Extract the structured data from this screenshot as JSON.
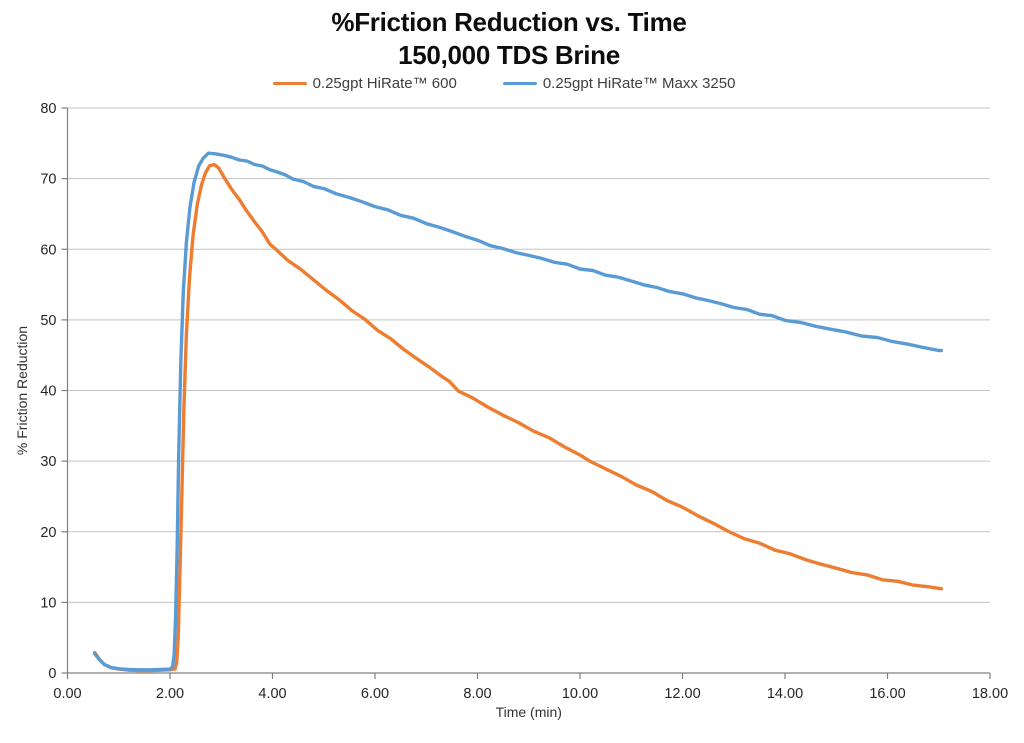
{
  "colors": {
    "orange_series": "#ED7D31",
    "blue_series": "#5B9BD5",
    "grid": "#C3C3C3",
    "axis": "#808080",
    "tick_text": "#262626",
    "title_text": "#0d0d0d"
  },
  "chart_data": {
    "type": "line",
    "title": "%Friction Reduction vs. Time",
    "subtitle": "150,000 TDS Brine",
    "xlabel": "Time (min)",
    "ylabel": "% Friction Reduction",
    "xlim": [
      0,
      18
    ],
    "ylim": [
      0,
      80
    ],
    "x_ticks": [
      "0.00",
      "2.00",
      "4.00",
      "6.00",
      "8.00",
      "10.00",
      "12.00",
      "14.00",
      "16.00",
      "18.00"
    ],
    "x_tick_values": [
      0,
      2,
      4,
      6,
      8,
      10,
      12,
      14,
      16,
      18
    ],
    "y_ticks": [
      0,
      10,
      20,
      30,
      40,
      50,
      60,
      70,
      80
    ],
    "grid": "horizontal",
    "legend_position": "top",
    "series": [
      {
        "name": "0.25gpt HiRate™ 600",
        "color": "#ED7D31",
        "points": [
          [
            0.53,
            2.9
          ],
          [
            0.62,
            1.95
          ],
          [
            0.72,
            1.2
          ],
          [
            0.85,
            0.75
          ],
          [
            1.0,
            0.55
          ],
          [
            1.2,
            0.4
          ],
          [
            1.4,
            0.35
          ],
          [
            1.6,
            0.35
          ],
          [
            1.8,
            0.4
          ],
          [
            2.0,
            0.45
          ],
          [
            2.1,
            0.6
          ],
          [
            2.13,
            1.5
          ],
          [
            2.16,
            5
          ],
          [
            2.19,
            13
          ],
          [
            2.23,
            25
          ],
          [
            2.27,
            37
          ],
          [
            2.32,
            48
          ],
          [
            2.38,
            56
          ],
          [
            2.45,
            62
          ],
          [
            2.53,
            66.3
          ],
          [
            2.61,
            69.0
          ],
          [
            2.69,
            70.8
          ],
          [
            2.77,
            71.8
          ],
          [
            2.86,
            72.0
          ],
          [
            2.95,
            71.5
          ],
          [
            3.07,
            70.0
          ],
          [
            3.2,
            68.6
          ],
          [
            3.35,
            67.0
          ],
          [
            3.5,
            65.4
          ],
          [
            3.65,
            63.9
          ],
          [
            3.8,
            62.4
          ],
          [
            3.95,
            60.8
          ],
          [
            4.05,
            60.0
          ],
          [
            4.3,
            58.5
          ],
          [
            4.55,
            57.1
          ],
          [
            4.8,
            55.7
          ],
          [
            5.05,
            54.2
          ],
          [
            5.3,
            52.8
          ],
          [
            5.55,
            51.4
          ],
          [
            5.8,
            50.0
          ],
          [
            6.05,
            48.6
          ],
          [
            6.3,
            47.3
          ],
          [
            6.55,
            45.9
          ],
          [
            6.8,
            44.6
          ],
          [
            7.05,
            43.3
          ],
          [
            7.3,
            42.1
          ],
          [
            7.45,
            41.2
          ],
          [
            7.63,
            40.0
          ],
          [
            7.9,
            38.9
          ],
          [
            8.2,
            37.7
          ],
          [
            8.5,
            36.5
          ],
          [
            8.8,
            35.4
          ],
          [
            9.1,
            34.3
          ],
          [
            9.4,
            33.2
          ],
          [
            9.7,
            32.1
          ],
          [
            10.0,
            30.8
          ],
          [
            10.2,
            30.0
          ],
          [
            10.5,
            28.9
          ],
          [
            10.8,
            27.8
          ],
          [
            11.1,
            26.7
          ],
          [
            11.4,
            25.6
          ],
          [
            11.7,
            24.5
          ],
          [
            12.0,
            23.4
          ],
          [
            12.3,
            22.3
          ],
          [
            12.6,
            21.2
          ],
          [
            12.9,
            20.0
          ],
          [
            13.2,
            19.1
          ],
          [
            13.5,
            18.3
          ],
          [
            13.8,
            17.5
          ],
          [
            14.1,
            16.8
          ],
          [
            14.4,
            16.1
          ],
          [
            14.7,
            15.4
          ],
          [
            15.0,
            14.8
          ],
          [
            15.3,
            14.3
          ],
          [
            15.6,
            13.8
          ],
          [
            15.9,
            13.3
          ],
          [
            16.2,
            12.9
          ],
          [
            16.5,
            12.5
          ],
          [
            16.8,
            12.2
          ],
          [
            17.05,
            11.9
          ]
        ]
      },
      {
        "name": "0.25gpt HiRate™ Maxx 3250",
        "color": "#5B9BD5",
        "points": [
          [
            0.53,
            2.75
          ],
          [
            0.62,
            1.9
          ],
          [
            0.72,
            1.2
          ],
          [
            0.85,
            0.8
          ],
          [
            1.0,
            0.6
          ],
          [
            1.2,
            0.5
          ],
          [
            1.4,
            0.45
          ],
          [
            1.6,
            0.45
          ],
          [
            1.8,
            0.5
          ],
          [
            2.0,
            0.55
          ],
          [
            2.05,
            0.9
          ],
          [
            2.08,
            2.5
          ],
          [
            2.11,
            8
          ],
          [
            2.14,
            18
          ],
          [
            2.17,
            31
          ],
          [
            2.21,
            44
          ],
          [
            2.26,
            54
          ],
          [
            2.32,
            61
          ],
          [
            2.39,
            66
          ],
          [
            2.47,
            69.5
          ],
          [
            2.56,
            71.8
          ],
          [
            2.65,
            72.9
          ],
          [
            2.75,
            73.6
          ],
          [
            2.9,
            73.5
          ],
          [
            3.05,
            73.3
          ],
          [
            3.2,
            73.0
          ],
          [
            3.35,
            72.7
          ],
          [
            3.5,
            72.4
          ],
          [
            3.65,
            72.1
          ],
          [
            3.8,
            71.7
          ],
          [
            3.95,
            71.3
          ],
          [
            4.1,
            70.9
          ],
          [
            4.25,
            70.5
          ],
          [
            4.4,
            70.0
          ],
          [
            4.6,
            69.5
          ],
          [
            4.8,
            69.0
          ],
          [
            5.0,
            68.5
          ],
          [
            5.25,
            67.9
          ],
          [
            5.5,
            67.3
          ],
          [
            5.75,
            66.7
          ],
          [
            6.0,
            66.1
          ],
          [
            6.25,
            65.5
          ],
          [
            6.5,
            64.9
          ],
          [
            6.75,
            64.3
          ],
          [
            7.0,
            63.7
          ],
          [
            7.25,
            63.1
          ],
          [
            7.5,
            62.5
          ],
          [
            7.75,
            61.9
          ],
          [
            8.0,
            61.2
          ],
          [
            8.25,
            60.6
          ],
          [
            8.5,
            60.0
          ],
          [
            8.75,
            59.6
          ],
          [
            9.0,
            59.1
          ],
          [
            9.25,
            58.7
          ],
          [
            9.5,
            58.2
          ],
          [
            9.75,
            57.8
          ],
          [
            10.0,
            57.3
          ],
          [
            10.25,
            56.9
          ],
          [
            10.5,
            56.4
          ],
          [
            10.75,
            56.0
          ],
          [
            11.0,
            55.5
          ],
          [
            11.25,
            55.0
          ],
          [
            11.5,
            54.5
          ],
          [
            11.75,
            54.1
          ],
          [
            12.0,
            53.6
          ],
          [
            12.25,
            53.2
          ],
          [
            12.5,
            52.7
          ],
          [
            12.75,
            52.3
          ],
          [
            13.0,
            51.8
          ],
          [
            13.25,
            51.4
          ],
          [
            13.5,
            50.9
          ],
          [
            13.75,
            50.5
          ],
          [
            14.0,
            50.0
          ],
          [
            14.3,
            49.6
          ],
          [
            14.6,
            49.1
          ],
          [
            14.9,
            48.7
          ],
          [
            15.2,
            48.2
          ],
          [
            15.5,
            47.8
          ],
          [
            15.8,
            47.4
          ],
          [
            16.1,
            47.0
          ],
          [
            16.4,
            46.5
          ],
          [
            16.7,
            46.1
          ],
          [
            17.0,
            45.7
          ],
          [
            17.05,
            45.6
          ]
        ]
      }
    ]
  }
}
